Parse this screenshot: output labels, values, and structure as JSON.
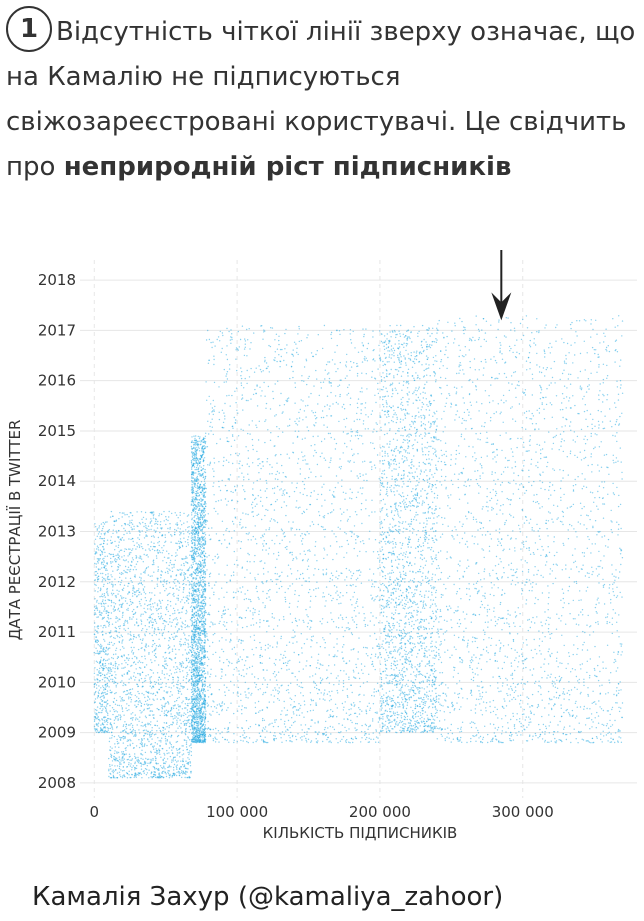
{
  "header": {
    "number": "1",
    "text_part1": "Відсутність чіткої лінії зверху означає, що на Камалію не підписуються свіжозареєстровані користувачі.  Це свідчить про ",
    "text_bold": "неприродній ріст підписників"
  },
  "credit": "Камалія Захур (@kamaliya_zahoor)",
  "colors": {
    "points": "#29abe2",
    "grid": "#e6e6e6",
    "arrow": "#222222"
  },
  "chart_data": {
    "type": "scatter",
    "xlabel": "КІЛЬКІСТЬ ПІДПИСНИКІВ",
    "ylabel": "ДАТА РЕЄСТРАЦІЇ В TWITTER",
    "xlim": [
      -10000,
      380000
    ],
    "ylim": [
      2007.7,
      2018.4
    ],
    "x_ticks": [
      0,
      100000,
      200000,
      300000
    ],
    "x_tick_labels": [
      "0",
      "100 000",
      "200 000",
      "300 000"
    ],
    "y_ticks": [
      2008,
      2009,
      2010,
      2011,
      2012,
      2013,
      2014,
      2015,
      2016,
      2017,
      2018
    ],
    "y_tick_labels": [
      "2008",
      "2009",
      "2010",
      "2011",
      "2012",
      "2013",
      "2014",
      "2015",
      "2016",
      "2017",
      "2018"
    ],
    "grid": true,
    "annotation": {
      "type": "arrow",
      "x": 285000,
      "y_from": 2018.1,
      "y_to": 2017.2
    },
    "segments": [
      {
        "x": [
          0,
          10000
        ],
        "y": [
          2009.0,
          2013.2
        ],
        "density": "medium"
      },
      {
        "x": [
          10000,
          68000
        ],
        "y": [
          2008.1,
          2013.4
        ],
        "density": "high"
      },
      {
        "x": [
          68000,
          78000
        ],
        "y": [
          2008.8,
          2014.9
        ],
        "density": "high"
      },
      {
        "x": [
          78000,
          200000
        ],
        "y": [
          2008.8,
          2017.1
        ],
        "density": "high"
      },
      {
        "x": [
          200000,
          240000
        ],
        "y": [
          2009.0,
          2017.1
        ],
        "density": "high"
      },
      {
        "x": [
          240000,
          370000
        ],
        "y": [
          2008.8,
          2017.3
        ],
        "density": "high"
      }
    ]
  }
}
